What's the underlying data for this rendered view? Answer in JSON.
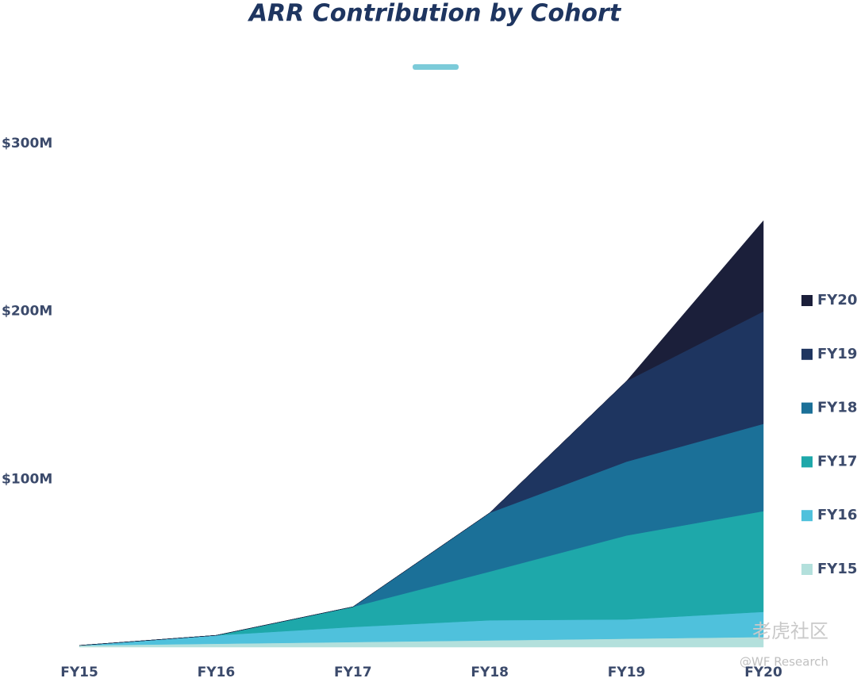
{
  "chart_data": {
    "type": "stacked_area",
    "title": "ARR Contribution by Cohort",
    "categories": [
      "FY15",
      "FY16",
      "FY17",
      "FY18",
      "FY19",
      "FY20"
    ],
    "series": [
      {
        "name": "FY15",
        "color": "#b3e0dc",
        "values": [
          1,
          2,
          3,
          4,
          5,
          6
        ]
      },
      {
        "name": "FY16",
        "color": "#4fc1dc",
        "values": [
          0,
          5,
          9,
          12,
          11.5,
          15
        ]
      },
      {
        "name": "FY17",
        "color": "#1ea8aa",
        "values": [
          0,
          0,
          12,
          29,
          50,
          60
        ]
      },
      {
        "name": "FY18",
        "color": "#1b7098",
        "values": [
          0,
          0,
          0,
          35,
          44,
          52
        ]
      },
      {
        "name": "FY19",
        "color": "#1e3560",
        "values": [
          0,
          0,
          0,
          0,
          48,
          67
        ]
      },
      {
        "name": "FY20",
        "color": "#1b1f3a",
        "values": [
          0,
          0,
          0,
          0,
          0,
          54
        ]
      }
    ],
    "ylim": [
      0,
      300
    ],
    "yticks": [
      {
        "value": 100,
        "label": "$100M"
      },
      {
        "value": 200,
        "label": "$200M"
      },
      {
        "value": 300,
        "label": "$300M"
      }
    ],
    "watermark": [
      "老虎社区",
      "@WF Research"
    ]
  }
}
